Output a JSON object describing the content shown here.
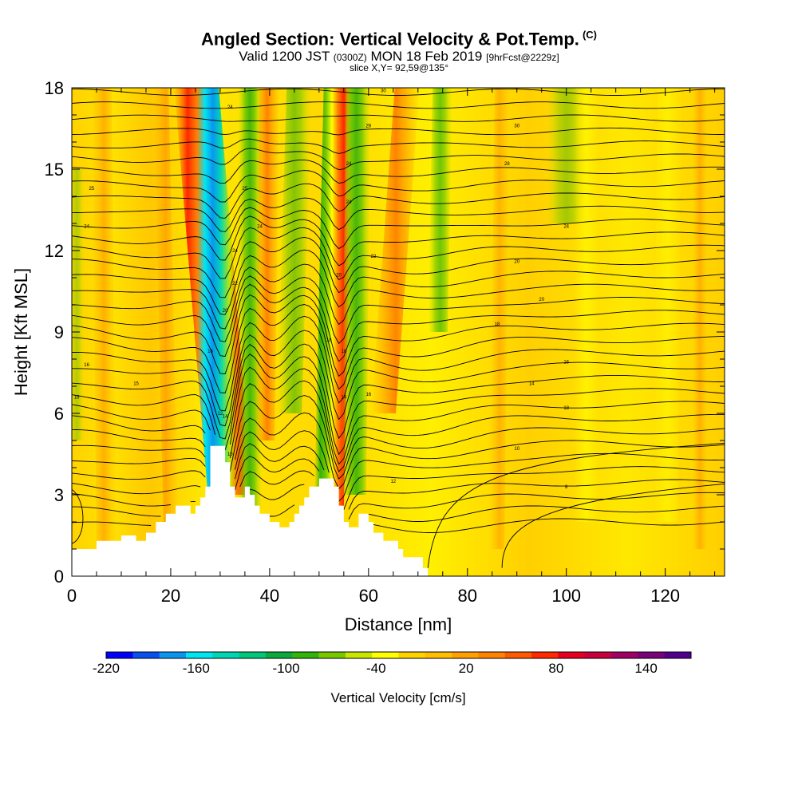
{
  "title": {
    "main": "Angled Section: Vertical Velocity & Pot.Temp.",
    "units_tag": "(C)",
    "valid_prefix": "Valid 1200 JST",
    "valid_utc": "(0300Z)",
    "valid_date": "MON 18 Feb 2019",
    "forecast": "[9hrFcst@2229z]",
    "slice": "slice X,Y= 92,59@135°"
  },
  "chart_data": {
    "type": "heatmap",
    "xlabel": "Distance [nm]",
    "ylabel": "Height [Kft MSL]",
    "xlim": [
      0,
      132
    ],
    "ylim": [
      0,
      18
    ],
    "xticks": [
      0,
      20,
      40,
      60,
      80,
      100,
      120
    ],
    "yticks": [
      0,
      3,
      6,
      9,
      12,
      15,
      18
    ],
    "colorbar": {
      "label": "Vertical Velocity [cm/s]",
      "range": [
        -220,
        170
      ],
      "step": 20,
      "tick_labels": [
        -220,
        -160,
        -100,
        -40,
        20,
        80,
        140
      ],
      "colors": [
        "#0000ff",
        "#0a50f0",
        "#0a96f0",
        "#00e6f0",
        "#00d6b4",
        "#00c878",
        "#0aaa3c",
        "#32b40a",
        "#78c800",
        "#c8e600",
        "#ffff00",
        "#ffd200",
        "#ffbe00",
        "#ffa000",
        "#ff8200",
        "#ff5a00",
        "#ff2800",
        "#e6001e",
        "#c8003c",
        "#a00064",
        "#780078",
        "#50008c"
      ]
    },
    "terrain_kft": [
      [
        0,
        1
      ],
      [
        5,
        1
      ],
      [
        5,
        1.3
      ],
      [
        10,
        1.3
      ],
      [
        10,
        1.5
      ],
      [
        13,
        1.5
      ],
      [
        13,
        1.3
      ],
      [
        15,
        1.3
      ],
      [
        15,
        1.6
      ],
      [
        17,
        1.6
      ],
      [
        17,
        2
      ],
      [
        19,
        2
      ],
      [
        19,
        2.3
      ],
      [
        21,
        2.3
      ],
      [
        21,
        2.6
      ],
      [
        24,
        2.6
      ],
      [
        24,
        2.3
      ],
      [
        25,
        2.3
      ],
      [
        25,
        2.6
      ],
      [
        26,
        2.6
      ],
      [
        26,
        2.9
      ],
      [
        27,
        2.9
      ],
      [
        27,
        3.3
      ],
      [
        28,
        3.3
      ],
      [
        28,
        4.8
      ],
      [
        31,
        4.8
      ],
      [
        31,
        4.2
      ],
      [
        32,
        4.2
      ],
      [
        32,
        3.3
      ],
      [
        33,
        3.3
      ],
      [
        33,
        2.9
      ],
      [
        35,
        2.9
      ],
      [
        35,
        3.3
      ],
      [
        36,
        3.3
      ],
      [
        36,
        3.0
      ],
      [
        37,
        3.0
      ],
      [
        37,
        2.6
      ],
      [
        38,
        2.6
      ],
      [
        38,
        2.3
      ],
      [
        40,
        2.3
      ],
      [
        40,
        2.0
      ],
      [
        42,
        2.0
      ],
      [
        42,
        1.8
      ],
      [
        44,
        1.8
      ],
      [
        44,
        2.0
      ],
      [
        45,
        2.0
      ],
      [
        45,
        2.3
      ],
      [
        46,
        2.3
      ],
      [
        46,
        2.6
      ],
      [
        47,
        2.6
      ],
      [
        47,
        2.9
      ],
      [
        48,
        2.9
      ],
      [
        48,
        3.3
      ],
      [
        50,
        3.3
      ],
      [
        50,
        3.6
      ],
      [
        53,
        3.6
      ],
      [
        53,
        3.3
      ],
      [
        54,
        3.3
      ],
      [
        54,
        2.6
      ],
      [
        55,
        2.6
      ],
      [
        55,
        2.0
      ],
      [
        56,
        2.0
      ],
      [
        56,
        1.8
      ],
      [
        58,
        1.8
      ],
      [
        58,
        2.3
      ],
      [
        60,
        2.3
      ],
      [
        60,
        2.0
      ],
      [
        61,
        2.0
      ],
      [
        61,
        1.6
      ],
      [
        63,
        1.6
      ],
      [
        63,
        1.3
      ],
      [
        66,
        1.3
      ],
      [
        66,
        1.0
      ],
      [
        67,
        1.0
      ],
      [
        67,
        0.7
      ],
      [
        71,
        0.7
      ],
      [
        71,
        0.3
      ],
      [
        72,
        0.3
      ],
      [
        72,
        0
      ]
    ],
    "contour_labels": [
      {
        "x": 32,
        "y": 17.3,
        "text": "24"
      },
      {
        "x": 63,
        "y": 17.9,
        "text": "30"
      },
      {
        "x": 60,
        "y": 16.6,
        "text": "28"
      },
      {
        "x": 90,
        "y": 16.6,
        "text": "30"
      },
      {
        "x": 56,
        "y": 15.2,
        "text": "24"
      },
      {
        "x": 88,
        "y": 15.2,
        "text": "28"
      },
      {
        "x": 4,
        "y": 14.3,
        "text": "25"
      },
      {
        "x": 35,
        "y": 14.3,
        "text": "25"
      },
      {
        "x": 56,
        "y": 13.8,
        "text": "24"
      },
      {
        "x": 3,
        "y": 12.9,
        "text": "24"
      },
      {
        "x": 38,
        "y": 12.9,
        "text": "24"
      },
      {
        "x": 100,
        "y": 12.9,
        "text": "24"
      },
      {
        "x": 33,
        "y": 12.0,
        "text": "24"
      },
      {
        "x": 61,
        "y": 11.8,
        "text": "22"
      },
      {
        "x": 90,
        "y": 11.6,
        "text": "20"
      },
      {
        "x": 54,
        "y": 11.1,
        "text": "20"
      },
      {
        "x": 33,
        "y": 10.8,
        "text": "22"
      },
      {
        "x": 95,
        "y": 10.2,
        "text": "20"
      },
      {
        "x": 31,
        "y": 9.8,
        "text": "20"
      },
      {
        "x": 86,
        "y": 9.3,
        "text": "18"
      },
      {
        "x": 52,
        "y": 8.7,
        "text": "18"
      },
      {
        "x": 28,
        "y": 8.3,
        "text": "16"
      },
      {
        "x": 55,
        "y": 8.3,
        "text": "18"
      },
      {
        "x": 100,
        "y": 7.9,
        "text": "16"
      },
      {
        "x": 3,
        "y": 7.8,
        "text": "16"
      },
      {
        "x": 13,
        "y": 7.1,
        "text": "15"
      },
      {
        "x": 93,
        "y": 7.1,
        "text": "14"
      },
      {
        "x": 60,
        "y": 6.7,
        "text": "16"
      },
      {
        "x": 1,
        "y": 6.6,
        "text": "16"
      },
      {
        "x": 55,
        "y": 6.6,
        "text": "14"
      },
      {
        "x": 100,
        "y": 6.2,
        "text": "18"
      },
      {
        "x": 31,
        "y": 5.9,
        "text": "14"
      },
      {
        "x": 30,
        "y": 6.0,
        "text": "12"
      },
      {
        "x": 90,
        "y": 4.7,
        "text": "10"
      },
      {
        "x": 32,
        "y": 4.5,
        "text": "10"
      },
      {
        "x": 65,
        "y": 3.5,
        "text": "12"
      },
      {
        "x": 100,
        "y": 3.3,
        "text": "8"
      }
    ]
  }
}
